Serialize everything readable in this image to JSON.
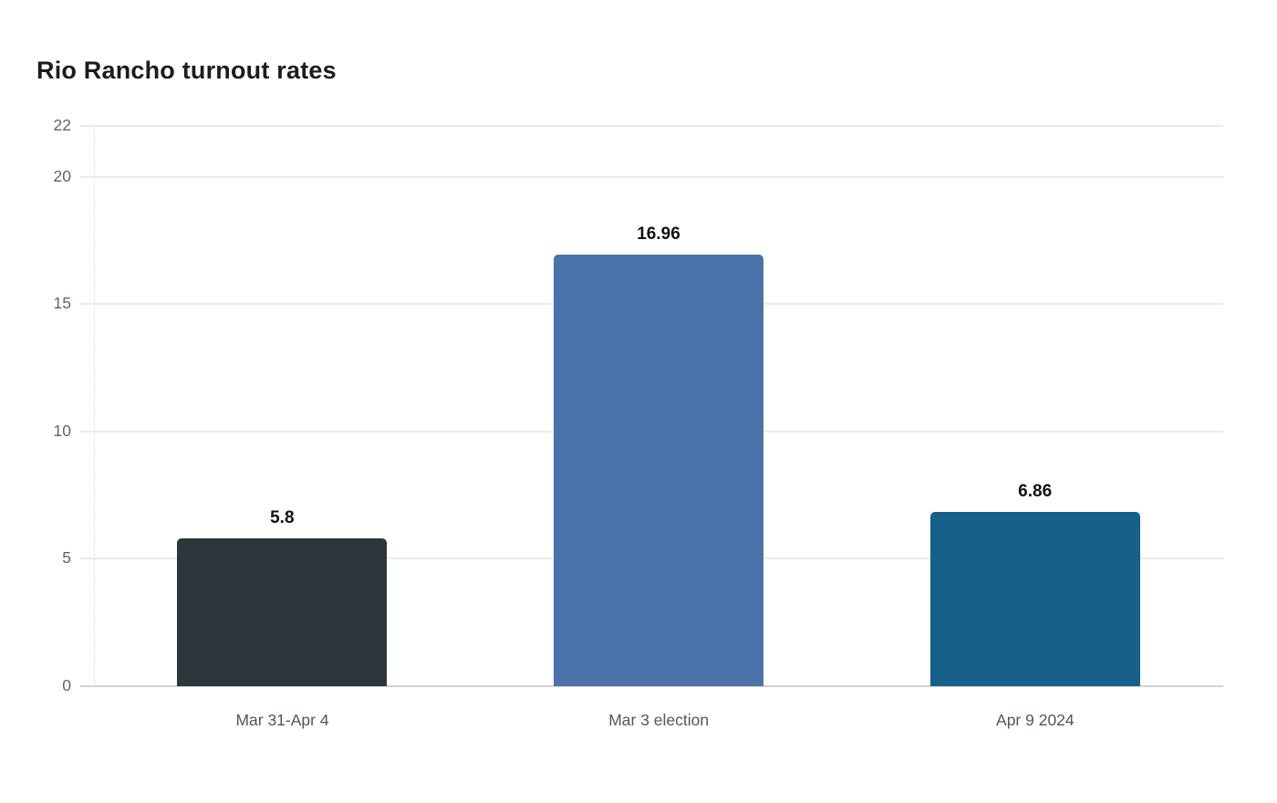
{
  "chart_data": {
    "type": "bar",
    "title": "Rio Rancho turnout rates",
    "categories": [
      "Mar 31-Apr 4",
      "Mar 3 election",
      "Apr 9 2024"
    ],
    "values": [
      5.8,
      16.96,
      6.86
    ],
    "value_labels": [
      "5.8",
      "16.96",
      "6.86"
    ],
    "bar_colors": [
      "#2c353a",
      "#4c73a9",
      "#15618a"
    ],
    "xlabel": "",
    "ylabel": "",
    "ylim": [
      0,
      22
    ],
    "yticks": [
      0,
      5,
      10,
      15,
      20,
      22
    ],
    "grid": "horizontal",
    "legend": "none",
    "value_labels_position": "above-bars"
  },
  "colors": {
    "background": "#ffffff",
    "title": "#1c1c1c",
    "tick_label": "#5b6670",
    "category_label": "#4d5761",
    "value_label": "#111111",
    "gridline": "#ebebeb",
    "baseline": "#d2d2d2",
    "axis_dotted": "#d8d8d8"
  }
}
